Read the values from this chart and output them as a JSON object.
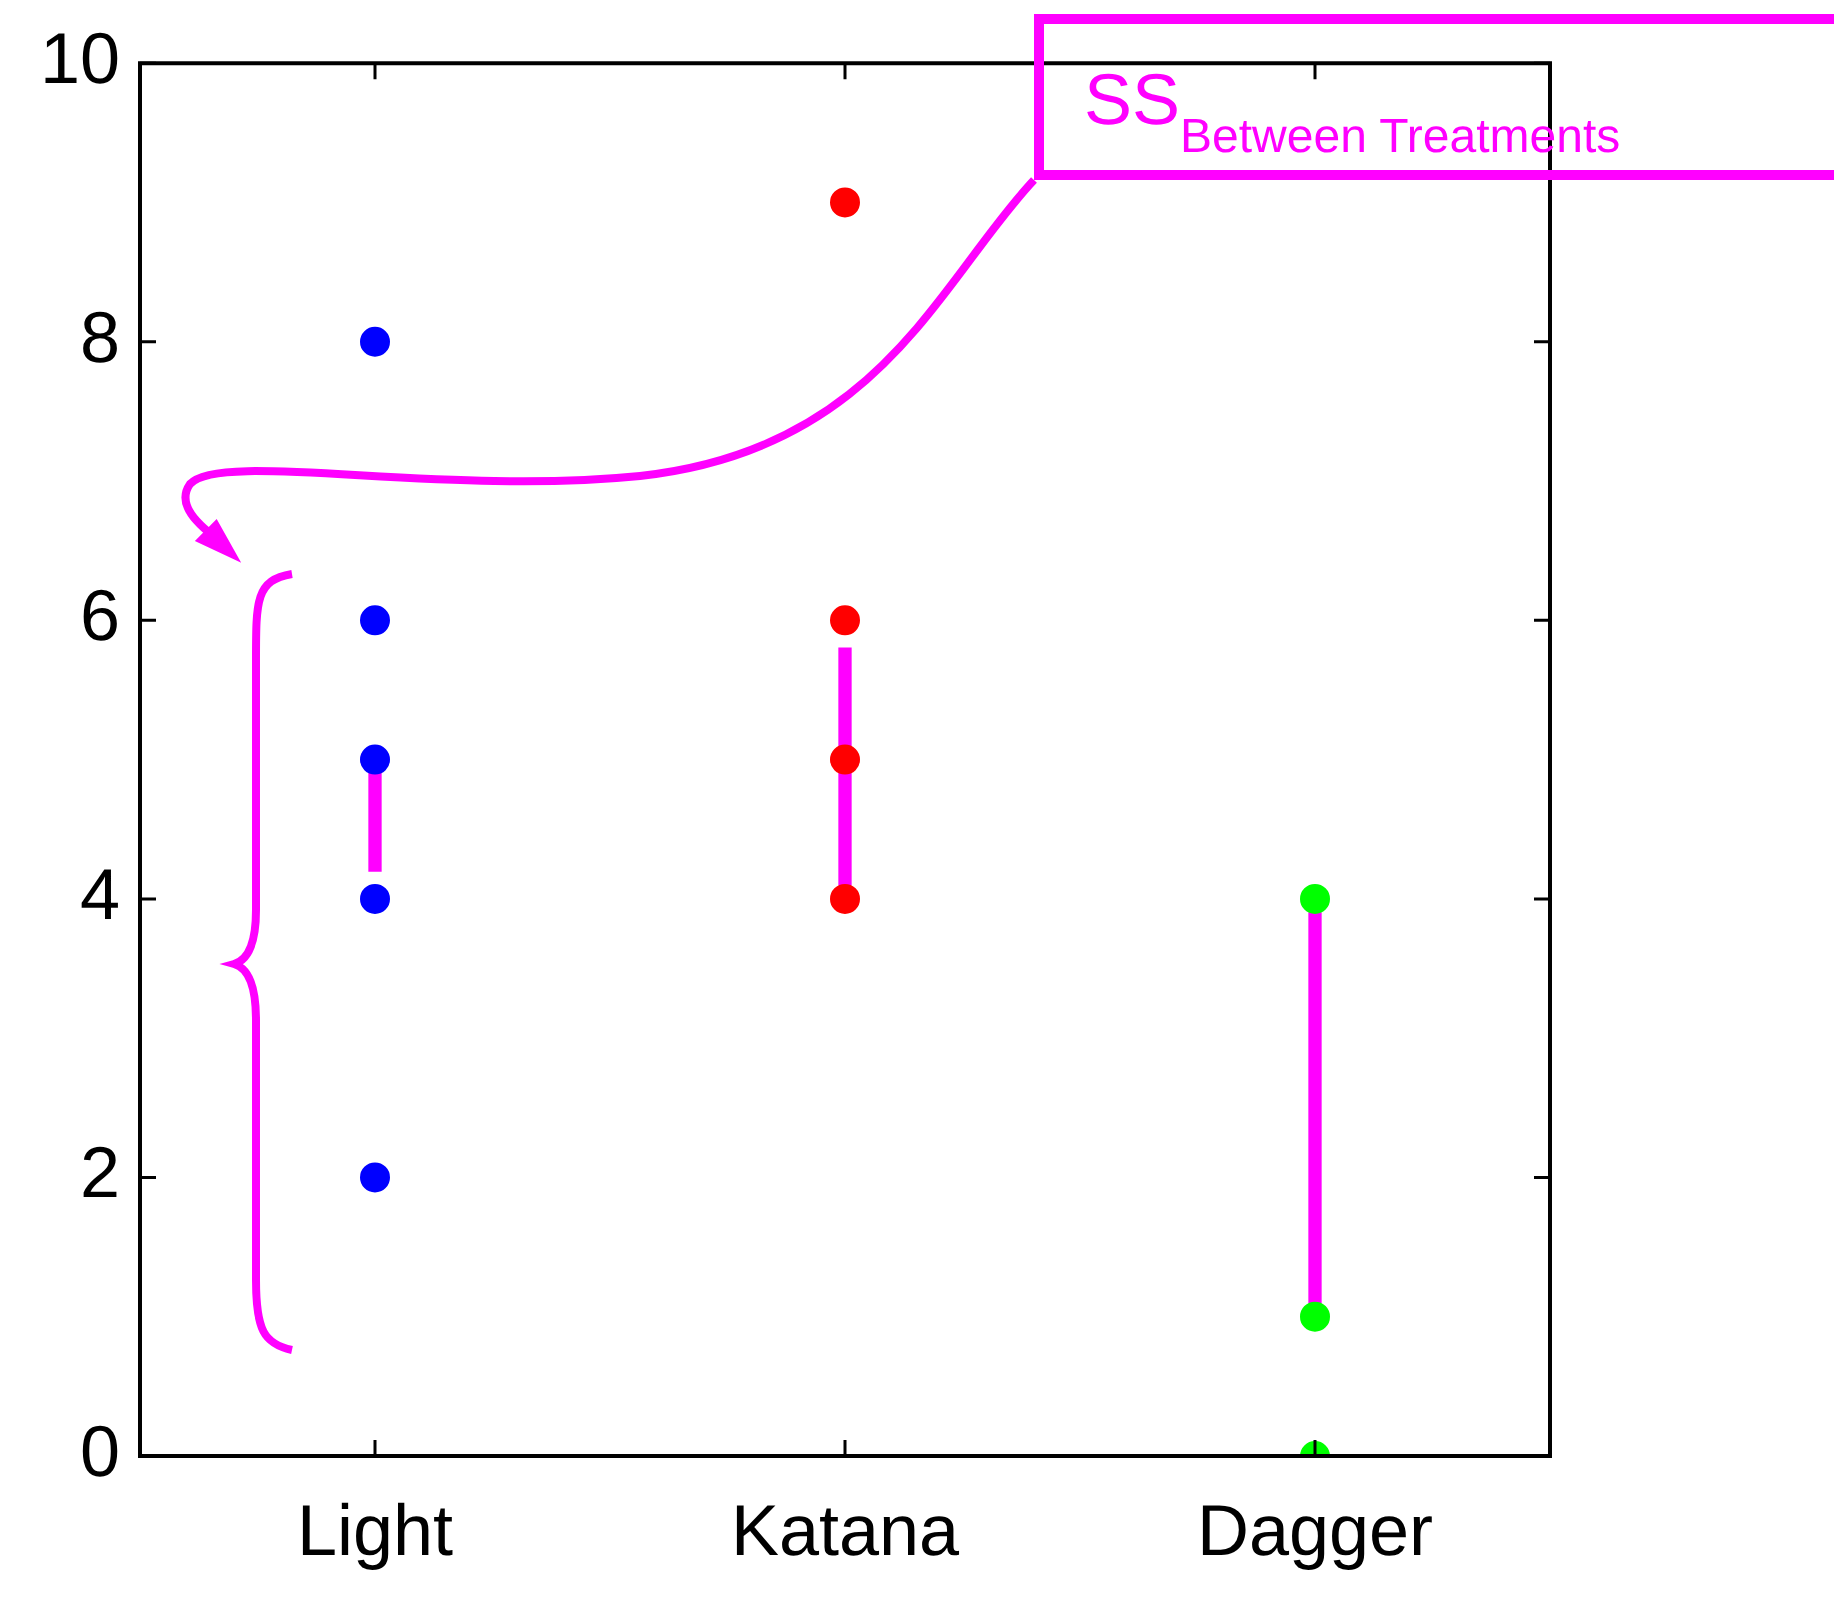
{
  "chart_data": {
    "type": "scatter",
    "categories": [
      "Light",
      "Katana",
      "Dagger"
    ],
    "ylim": [
      0,
      10
    ],
    "yticks": [
      0,
      2,
      4,
      6,
      8,
      10
    ],
    "grid": false,
    "legend": false,
    "marker": "circle",
    "series": [
      {
        "color": "#0000ff",
        "x": [
          "Light",
          "Light",
          "Light",
          "Light",
          "Light"
        ],
        "values": [
          8,
          6,
          5,
          4,
          2
        ]
      },
      {
        "color": "#ff0000",
        "x": [
          "Katana",
          "Katana",
          "Katana",
          "Katana"
        ],
        "values": [
          9,
          6,
          5,
          4
        ]
      },
      {
        "color": "#00ff00",
        "x": [
          "Dagger",
          "Dagger",
          "Dagger"
        ],
        "values": [
          4,
          1,
          0
        ]
      },
      {
        "type": "bar",
        "color": "#ff00ff",
        "base": [
          4.2,
          4.1,
          1.1
        ],
        "values": [
          0.7,
          1.7,
          2.8
        ]
      }
    ],
    "annotations": [
      "SS$_{Between Treatments}$"
    ]
  }
}
